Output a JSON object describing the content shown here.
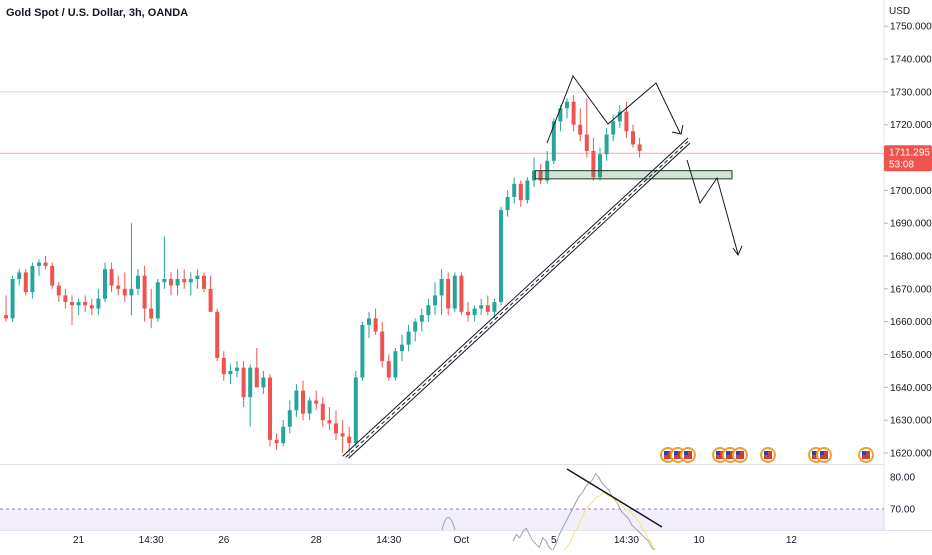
{
  "chart_data": {
    "type": "candlestick",
    "title": "Gold Spot / U.S. Dollar, 3h, OANDA",
    "currency": "USD",
    "y_ticks": [
      "1750.000",
      "1740.000",
      "1730.000",
      "1720.000",
      "1710.000",
      "1700.000",
      "1690.000",
      "1680.000",
      "1670.000",
      "1660.000",
      "1650.000",
      "1640.000",
      "1630.000",
      "1620.000"
    ],
    "y_tick_values": [
      1750,
      1740,
      1730,
      1720,
      1710,
      1700,
      1690,
      1680,
      1670,
      1660,
      1650,
      1640,
      1630,
      1620
    ],
    "ylim": [
      1618.5,
      1754.5
    ],
    "rsi_ticks": [
      "80.00",
      "70.00"
    ],
    "rsi_tick_values": [
      80,
      70
    ],
    "x_ticks": [
      "21",
      "14:30",
      "26",
      "28",
      "14:30",
      "Oct",
      "5",
      "14:30",
      "10",
      "12"
    ],
    "x_tick_bar_index": [
      11,
      22,
      33,
      47,
      58,
      69,
      83,
      94,
      105,
      119
    ],
    "last_price": "1711.295",
    "countdown": "53:08",
    "price_colors": {
      "up": "#26a69a",
      "down": "#ef5350"
    },
    "candles": [
      [
        1662,
        1668,
        1660,
        1661
      ],
      [
        1661,
        1674,
        1660,
        1673
      ],
      [
        1673,
        1676,
        1671,
        1675
      ],
      [
        1675,
        1676,
        1668,
        1669
      ],
      [
        1669,
        1678,
        1667,
        1677
      ],
      [
        1677,
        1679,
        1674,
        1678
      ],
      [
        1678,
        1680,
        1676,
        1677
      ],
      [
        1677,
        1678,
        1670,
        1671
      ],
      [
        1671,
        1672,
        1666,
        1668
      ],
      [
        1668,
        1670,
        1664,
        1666
      ],
      [
        1666,
        1668,
        1659,
        1665
      ],
      [
        1665,
        1667,
        1662,
        1666
      ],
      [
        1666,
        1668,
        1663,
        1665
      ],
      [
        1665,
        1667,
        1662,
        1664
      ],
      [
        1664,
        1670,
        1662,
        1667
      ],
      [
        1667,
        1678,
        1666,
        1676
      ],
      [
        1676,
        1678,
        1669,
        1671
      ],
      [
        1671,
        1674,
        1668,
        1670
      ],
      [
        1670,
        1675,
        1666,
        1668
      ],
      [
        1668,
        1690,
        1662,
        1670
      ],
      [
        1670,
        1676,
        1668,
        1674
      ],
      [
        1674,
        1677,
        1660,
        1664
      ],
      [
        1664,
        1670,
        1658,
        1661
      ],
      [
        1661,
        1673,
        1660,
        1672
      ],
      [
        1672,
        1686,
        1670,
        1673
      ],
      [
        1673,
        1675,
        1668,
        1671
      ],
      [
        1671,
        1676,
        1668,
        1673
      ],
      [
        1673,
        1676,
        1670,
        1672
      ],
      [
        1672,
        1675,
        1668,
        1673
      ],
      [
        1673,
        1676,
        1670,
        1674
      ],
      [
        1674,
        1675,
        1669,
        1670
      ],
      [
        1670,
        1674,
        1663,
        1663
      ],
      [
        1663,
        1664,
        1648,
        1649
      ],
      [
        1649,
        1651,
        1642,
        1644
      ],
      [
        1644,
        1647,
        1641,
        1645
      ],
      [
        1645,
        1648,
        1643,
        1646
      ],
      [
        1646,
        1648,
        1634,
        1637
      ],
      [
        1637,
        1647,
        1628,
        1646
      ],
      [
        1646,
        1652,
        1640,
        1640
      ],
      [
        1640,
        1645,
        1638,
        1643
      ],
      [
        1643,
        1644,
        1622,
        1624
      ],
      [
        1624,
        1626,
        1621,
        1623
      ],
      [
        1623,
        1630,
        1622,
        1628
      ],
      [
        1628,
        1636,
        1626,
        1633
      ],
      [
        1633,
        1641,
        1631,
        1639
      ],
      [
        1639,
        1642,
        1630,
        1632
      ],
      [
        1632,
        1637,
        1630,
        1636
      ],
      [
        1636,
        1639,
        1633,
        1635
      ],
      [
        1635,
        1637,
        1628,
        1630
      ],
      [
        1630,
        1634,
        1627,
        1629
      ],
      [
        1629,
        1633,
        1624,
        1626
      ],
      [
        1626,
        1630,
        1620,
        1625
      ],
      [
        1625,
        1628,
        1619,
        1623
      ],
      [
        1623,
        1645,
        1622,
        1643
      ],
      [
        1643,
        1660,
        1642,
        1659
      ],
      [
        1659,
        1663,
        1655,
        1661
      ],
      [
        1661,
        1664,
        1656,
        1657
      ],
      [
        1657,
        1660,
        1646,
        1648
      ],
      [
        1648,
        1650,
        1642,
        1643
      ],
      [
        1643,
        1652,
        1642,
        1651
      ],
      [
        1651,
        1656,
        1648,
        1653
      ],
      [
        1653,
        1659,
        1651,
        1657
      ],
      [
        1657,
        1661,
        1654,
        1660
      ],
      [
        1660,
        1664,
        1657,
        1662
      ],
      [
        1662,
        1667,
        1660,
        1665
      ],
      [
        1665,
        1672,
        1662,
        1668
      ],
      [
        1668,
        1676,
        1662,
        1673
      ],
      [
        1673,
        1675,
        1662,
        1664
      ],
      [
        1664,
        1675,
        1663,
        1674
      ],
      [
        1674,
        1675,
        1662,
        1663
      ],
      [
        1663,
        1666,
        1660,
        1662
      ],
      [
        1662,
        1665,
        1660,
        1664
      ],
      [
        1664,
        1667,
        1662,
        1665
      ],
      [
        1665,
        1668,
        1662,
        1663
      ],
      [
        1663,
        1667,
        1661,
        1666
      ],
      [
        1666,
        1695,
        1665,
        1694
      ],
      [
        1694,
        1700,
        1692,
        1698
      ],
      [
        1698,
        1704,
        1696,
        1702
      ],
      [
        1702,
        1703,
        1695,
        1697
      ],
      [
        1697,
        1704,
        1696,
        1703
      ],
      [
        1703,
        1710,
        1701,
        1706
      ],
      [
        1706,
        1708,
        1702,
        1703
      ],
      [
        1703,
        1712,
        1702,
        1709
      ],
      [
        1709,
        1722,
        1708,
        1721
      ],
      [
        1721,
        1726,
        1718,
        1725
      ],
      [
        1725,
        1728,
        1722,
        1727
      ],
      [
        1727,
        1729,
        1718,
        1720
      ],
      [
        1720,
        1725,
        1715,
        1717
      ],
      [
        1717,
        1728,
        1710,
        1712
      ],
      [
        1712,
        1716,
        1703,
        1704
      ],
      [
        1704,
        1713,
        1703,
        1711
      ],
      [
        1711,
        1719,
        1709,
        1717
      ],
      [
        1717,
        1723,
        1715,
        1721
      ],
      [
        1721,
        1726,
        1719,
        1724
      ],
      [
        1724,
        1727,
        1716,
        1718
      ],
      [
        1718,
        1720,
        1713,
        1714
      ],
      [
        1714,
        1716,
        1710,
        1712
      ]
    ],
    "rsi_series": [
      60,
      62,
      61,
      63,
      64,
      62,
      60,
      59,
      58,
      61,
      60,
      58,
      57,
      59,
      62,
      64,
      66,
      68,
      70,
      72,
      74,
      75,
      77,
      78,
      79,
      81,
      80,
      78,
      77,
      76,
      74,
      73,
      71,
      69,
      68,
      67,
      65,
      64,
      63,
      62,
      61,
      60,
      58,
      57,
      56,
      55,
      54
    ],
    "rsi_avg_series": [
      55,
      56,
      57,
      58,
      59,
      61,
      63,
      64,
      66,
      68,
      70,
      71,
      72,
      73,
      74,
      74,
      75,
      75,
      74,
      74,
      73,
      72,
      72,
      71,
      70,
      70,
      69,
      68,
      67,
      66,
      64,
      63,
      61,
      60,
      58,
      57,
      56
    ],
    "annotations": {
      "support_zone": [
        1703.5,
        1706
      ],
      "horizontal_levels": [
        1730,
        1711.3
      ],
      "trendline": {
        "from": [
          51,
          1619
        ],
        "to": [
          103,
          1716
        ]
      }
    }
  }
}
